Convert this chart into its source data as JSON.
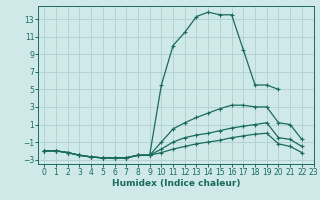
{
  "xlabel": "Humidex (Indice chaleur)",
  "background_color": "#cfe8e8",
  "grid_color": "#b0d0d0",
  "line_color": "#1a6b5a",
  "xlim": [
    -0.5,
    23
  ],
  "ylim": [
    -3.5,
    14.5
  ],
  "xticks": [
    0,
    1,
    2,
    3,
    4,
    5,
    6,
    7,
    8,
    9,
    10,
    11,
    12,
    13,
    14,
    15,
    16,
    17,
    18,
    19,
    20,
    21,
    22,
    23
  ],
  "yticks": [
    -3,
    -1,
    1,
    3,
    5,
    7,
    9,
    11,
    13
  ],
  "series": [
    {
      "x": [
        0,
        1,
        2,
        3,
        4,
        5,
        6,
        7,
        8,
        9,
        10,
        11,
        12,
        13,
        14,
        15,
        16,
        17,
        18,
        19,
        20,
        21,
        22
      ],
      "y": [
        -2,
        -2,
        -2.2,
        -2.5,
        -2.7,
        -2.8,
        -2.8,
        -2.8,
        -2.5,
        -2.5,
        5.5,
        10.0,
        11.5,
        13.3,
        13.8,
        13.5,
        13.5,
        9.5,
        5.5,
        5.5,
        5.0,
        null,
        null
      ]
    },
    {
      "x": [
        0,
        1,
        2,
        3,
        4,
        5,
        6,
        7,
        8,
        9,
        10,
        11,
        12,
        13,
        14,
        15,
        16,
        17,
        18,
        19,
        20,
        21,
        22
      ],
      "y": [
        -2,
        -2,
        -2.2,
        -2.5,
        -2.7,
        -2.8,
        -2.8,
        -2.8,
        -2.5,
        -2.5,
        -1.0,
        0.5,
        1.2,
        1.8,
        2.3,
        2.8,
        3.2,
        3.2,
        3.0,
        3.0,
        1.2,
        1.0,
        -0.7
      ]
    },
    {
      "x": [
        0,
        1,
        2,
        3,
        4,
        5,
        6,
        7,
        8,
        9,
        10,
        11,
        12,
        13,
        14,
        15,
        16,
        17,
        18,
        19,
        20,
        21,
        22
      ],
      "y": [
        -2,
        -2,
        -2.2,
        -2.5,
        -2.7,
        -2.8,
        -2.8,
        -2.8,
        -2.5,
        -2.5,
        -1.8,
        -1.0,
        -0.5,
        -0.2,
        0.0,
        0.3,
        0.6,
        0.8,
        1.0,
        1.2,
        -0.5,
        -0.7,
        -1.5
      ]
    },
    {
      "x": [
        0,
        1,
        2,
        3,
        4,
        5,
        6,
        7,
        8,
        9,
        10,
        11,
        12,
        13,
        14,
        15,
        16,
        17,
        18,
        19,
        20,
        21,
        22
      ],
      "y": [
        -2,
        -2,
        -2.2,
        -2.5,
        -2.7,
        -2.8,
        -2.8,
        -2.8,
        -2.5,
        -2.5,
        -2.2,
        -1.8,
        -1.5,
        -1.2,
        -1.0,
        -0.8,
        -0.5,
        -0.3,
        -0.1,
        0.0,
        -1.2,
        -1.5,
        -2.2
      ]
    }
  ]
}
